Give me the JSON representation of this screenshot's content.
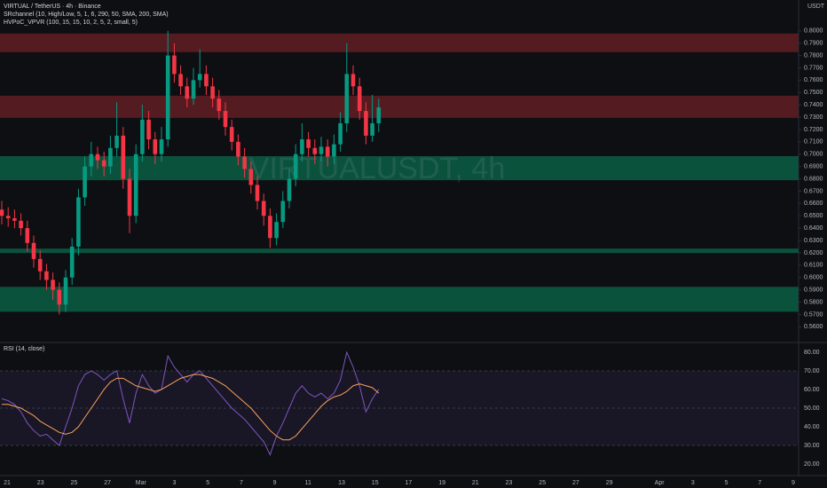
{
  "header": {
    "symbol": "VIRTUAL / TetherUS · 4h · Binance",
    "indicator1": "SRchannel (10, High/Low, 5, 1, 6, 290, 50, SMA, 200, SMA)",
    "indicator2": "HVPoC_VPVR (100, 15, 15, 10, 2, 5, 2, small, 5)",
    "currency": "USDT",
    "watermark": "VIRTUALUSDT, 4h"
  },
  "chart_data": [
    {
      "type": "candlestick",
      "up_color": "#089981",
      "down_color": "#f23645",
      "candles": [
        [
          0.655,
          0.662,
          0.643,
          0.65
        ],
        [
          0.65,
          0.657,
          0.641,
          0.648
        ],
        [
          0.648,
          0.655,
          0.64,
          0.646
        ],
        [
          0.646,
          0.652,
          0.634,
          0.64
        ],
        [
          0.64,
          0.646,
          0.621,
          0.628
        ],
        [
          0.628,
          0.634,
          0.608,
          0.615
        ],
        [
          0.615,
          0.622,
          0.598,
          0.605
        ],
        [
          0.605,
          0.611,
          0.59,
          0.598
        ],
        [
          0.598,
          0.604,
          0.582,
          0.59
        ],
        [
          0.59,
          0.596,
          0.57,
          0.578
        ],
        [
          0.578,
          0.606,
          0.572,
          0.6
        ],
        [
          0.6,
          0.632,
          0.594,
          0.625
        ],
        [
          0.625,
          0.672,
          0.618,
          0.665
        ],
        [
          0.665,
          0.698,
          0.658,
          0.69
        ],
        [
          0.69,
          0.71,
          0.682,
          0.7
        ],
        [
          0.7,
          0.706,
          0.688,
          0.695
        ],
        [
          0.695,
          0.702,
          0.682,
          0.69
        ],
        [
          0.69,
          0.715,
          0.684,
          0.705
        ],
        [
          0.705,
          0.742,
          0.698,
          0.715
        ],
        [
          0.715,
          0.722,
          0.672,
          0.68
        ],
        [
          0.68,
          0.688,
          0.636,
          0.65
        ],
        [
          0.65,
          0.708,
          0.644,
          0.7
        ],
        [
          0.7,
          0.74,
          0.694,
          0.728
        ],
        [
          0.728,
          0.735,
          0.704,
          0.712
        ],
        [
          0.712,
          0.718,
          0.692,
          0.7
        ],
        [
          0.7,
          0.722,
          0.694,
          0.712
        ],
        [
          0.712,
          0.8,
          0.706,
          0.78
        ],
        [
          0.78,
          0.79,
          0.758,
          0.765
        ],
        [
          0.765,
          0.772,
          0.748,
          0.755
        ],
        [
          0.755,
          0.762,
          0.738,
          0.745
        ],
        [
          0.745,
          0.77,
          0.74,
          0.76
        ],
        [
          0.76,
          0.785,
          0.754,
          0.765
        ],
        [
          0.765,
          0.772,
          0.748,
          0.755
        ],
        [
          0.755,
          0.762,
          0.738,
          0.745
        ],
        [
          0.745,
          0.752,
          0.728,
          0.735
        ],
        [
          0.735,
          0.742,
          0.715,
          0.722
        ],
        [
          0.722,
          0.728,
          0.703,
          0.71
        ],
        [
          0.71,
          0.716,
          0.691,
          0.698
        ],
        [
          0.698,
          0.705,
          0.681,
          0.688
        ],
        [
          0.688,
          0.694,
          0.668,
          0.675
        ],
        [
          0.675,
          0.682,
          0.655,
          0.662
        ],
        [
          0.662,
          0.668,
          0.642,
          0.65
        ],
        [
          0.65,
          0.656,
          0.624,
          0.632
        ],
        [
          0.632,
          0.652,
          0.626,
          0.645
        ],
        [
          0.645,
          0.67,
          0.64,
          0.662
        ],
        [
          0.662,
          0.688,
          0.656,
          0.68
        ],
        [
          0.68,
          0.708,
          0.674,
          0.7
        ],
        [
          0.7,
          0.725,
          0.694,
          0.712
        ],
        [
          0.712,
          0.718,
          0.698,
          0.705
        ],
        [
          0.705,
          0.712,
          0.692,
          0.7
        ],
        [
          0.7,
          0.714,
          0.694,
          0.706
        ],
        [
          0.706,
          0.712,
          0.69,
          0.698
        ],
        [
          0.698,
          0.716,
          0.692,
          0.708
        ],
        [
          0.708,
          0.734,
          0.702,
          0.725
        ],
        [
          0.725,
          0.79,
          0.718,
          0.765
        ],
        [
          0.765,
          0.772,
          0.748,
          0.755
        ],
        [
          0.755,
          0.762,
          0.728,
          0.735
        ],
        [
          0.735,
          0.742,
          0.708,
          0.715
        ],
        [
          0.715,
          0.748,
          0.71,
          0.725
        ],
        [
          0.725,
          0.745,
          0.718,
          0.738
        ]
      ],
      "zones": [
        {
          "low": 0.7827,
          "high": 0.7978,
          "color": "#5c1d24"
        },
        {
          "low": 0.7294,
          "high": 0.7474,
          "color": "#5c1d24"
        },
        {
          "low": 0.6789,
          "high": 0.6984,
          "color": "#0b5a43"
        },
        {
          "low": 0.6198,
          "high": 0.6234,
          "color": "#0b5a43"
        },
        {
          "low": 0.5722,
          "high": 0.5924,
          "color": "#0b5a43"
        }
      ],
      "ylim": [
        0.548,
        0.825
      ],
      "yticks": [
        {
          "value": 0.8,
          "label": "0.8000"
        },
        {
          "value": 0.79,
          "label": "0.7900"
        },
        {
          "value": 0.78,
          "label": "0.7800"
        },
        {
          "value": 0.77,
          "label": "0.7700"
        },
        {
          "value": 0.76,
          "label": "0.7600"
        },
        {
          "value": 0.75,
          "label": "0.7500"
        },
        {
          "value": 0.74,
          "label": "0.7400"
        },
        {
          "value": 0.73,
          "label": "0.7300"
        },
        {
          "value": 0.72,
          "label": "0.7200"
        },
        {
          "value": 0.71,
          "label": "0.7100"
        },
        {
          "value": 0.7,
          "label": "0.7000"
        },
        {
          "value": 0.69,
          "label": "0.6900"
        },
        {
          "value": 0.68,
          "label": "0.6800"
        },
        {
          "value": 0.67,
          "label": "0.6700"
        },
        {
          "value": 0.66,
          "label": "0.6600"
        },
        {
          "value": 0.65,
          "label": "0.6500"
        },
        {
          "value": 0.64,
          "label": "0.6400"
        },
        {
          "value": 0.63,
          "label": "0.6300"
        },
        {
          "value": 0.62,
          "label": "0.6200"
        },
        {
          "value": 0.61,
          "label": "0.6100"
        },
        {
          "value": 0.6,
          "label": "0.6000"
        },
        {
          "value": 0.59,
          "label": "0.5900"
        },
        {
          "value": 0.58,
          "label": "0.5800"
        },
        {
          "value": 0.57,
          "label": "0.5700"
        },
        {
          "value": 0.56,
          "label": "0.5600"
        }
      ]
    },
    {
      "type": "line",
      "title": "RSI (14, close)",
      "series": [
        {
          "color": "#7e57c2",
          "values": [
            55,
            54,
            52,
            48,
            42,
            38,
            35,
            36,
            33,
            30,
            40,
            50,
            62,
            68,
            70,
            68,
            65,
            68,
            70,
            55,
            42,
            58,
            68,
            62,
            58,
            60,
            78,
            72,
            68,
            64,
            68,
            70,
            66,
            62,
            58,
            54,
            50,
            47,
            44,
            40,
            36,
            32,
            25,
            35,
            42,
            50,
            58,
            62,
            58,
            56,
            58,
            55,
            58,
            65,
            80,
            72,
            62,
            48,
            55,
            60
          ]
        },
        {
          "color": "#f7a35c",
          "values": [
            52,
            52,
            51,
            50,
            48,
            46,
            43,
            41,
            39,
            37,
            36,
            37,
            40,
            45,
            50,
            55,
            60,
            64,
            66,
            66,
            64,
            62,
            61,
            60,
            59,
            60,
            62,
            64,
            66,
            67,
            68,
            68,
            67,
            66,
            64,
            62,
            59,
            56,
            53,
            50,
            46,
            42,
            38,
            35,
            33,
            33,
            35,
            39,
            43,
            47,
            51,
            54,
            56,
            57,
            59,
            62,
            63,
            62,
            61,
            58
          ]
        }
      ],
      "band": [
        30,
        70
      ],
      "ylim": [
        14.3,
        83.3
      ],
      "yticks": [
        {
          "value": 80,
          "label": "80.00"
        },
        {
          "value": 70,
          "label": "70.00"
        },
        {
          "value": 60,
          "label": "60.00"
        },
        {
          "value": 50,
          "label": "50.00"
        },
        {
          "value": 40,
          "label": "40.00"
        },
        {
          "value": 30,
          "label": "30.00"
        },
        {
          "value": 20,
          "label": "20.00"
        }
      ],
      "xlim": [
        0,
        47.4
      ],
      "xticks": [
        {
          "value": 0,
          "label": "21"
        },
        {
          "value": 2,
          "label": "23"
        },
        {
          "value": 4,
          "label": "25"
        },
        {
          "value": 6,
          "label": "27"
        },
        {
          "value": 8,
          "label": "Mar"
        },
        {
          "value": 10,
          "label": "3"
        },
        {
          "value": 12,
          "label": "5"
        },
        {
          "value": 14,
          "label": "7"
        },
        {
          "value": 16,
          "label": "9"
        },
        {
          "value": 18,
          "label": "11"
        },
        {
          "value": 20,
          "label": "13"
        },
        {
          "value": 22,
          "label": "15"
        },
        {
          "value": 24,
          "label": "17"
        },
        {
          "value": 26,
          "label": "19"
        },
        {
          "value": 28,
          "label": "21"
        },
        {
          "value": 30,
          "label": "23"
        },
        {
          "value": 32,
          "label": "25"
        },
        {
          "value": 34,
          "label": "27"
        },
        {
          "value": 36,
          "label": "29"
        },
        {
          "value": 39,
          "label": "Apr"
        },
        {
          "value": 41,
          "label": "3"
        },
        {
          "value": 43,
          "label": "5"
        },
        {
          "value": 45,
          "label": "7"
        },
        {
          "value": 47,
          "label": "9"
        }
      ]
    }
  ]
}
